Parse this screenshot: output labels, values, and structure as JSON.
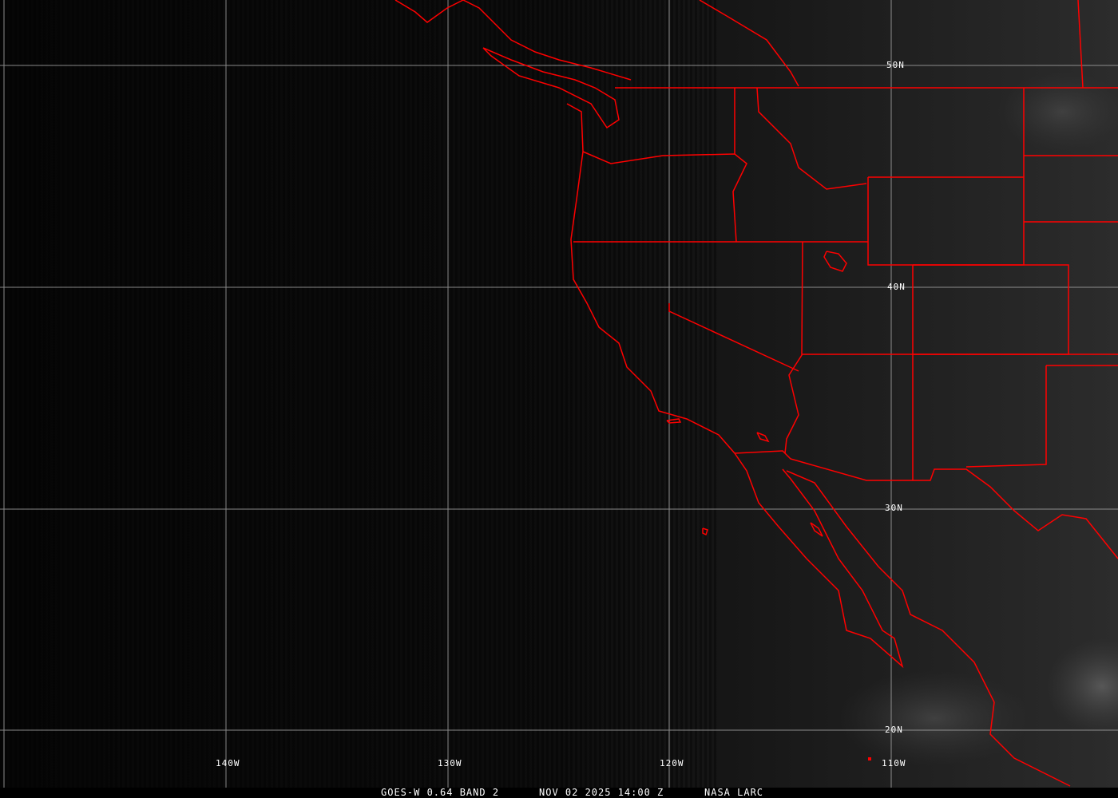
{
  "map": {
    "lat_labels": [
      "50N",
      "40N",
      "30N",
      "20N"
    ],
    "lon_labels": [
      "140W",
      "130W",
      "120W",
      "110W"
    ],
    "border_color": "#ff0000",
    "grid_color": "#a0a0a0"
  },
  "caption": {
    "product": "GOES-W 0.64 BAND 2",
    "datetime": "NOV 02 2025 14:00 Z",
    "source": "NASA LARC"
  }
}
